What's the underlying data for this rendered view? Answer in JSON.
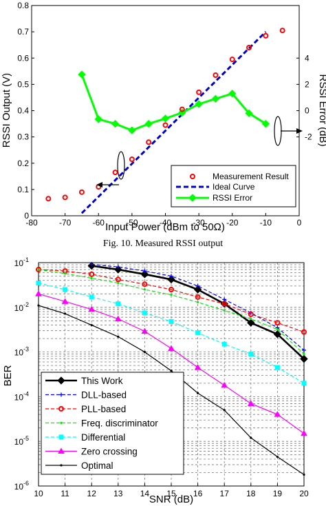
{
  "caption": "Fig. 10.  Measured RSSI output",
  "chart_data": [
    {
      "type": "line",
      "xlabel": "Input Power (dBm to 50Ω)",
      "ylabel": "RSSI Output (V)",
      "y2label": "RSSI Error (dB)",
      "xlim": [
        -80,
        0
      ],
      "ylim": [
        0,
        0.8
      ],
      "y2lim": [
        -8,
        8
      ],
      "xticks": [
        "-80",
        "-70",
        "-60",
        "-50",
        "-40",
        "-30",
        "-20",
        "-10",
        "0"
      ],
      "yticks": [
        "0",
        "0.1",
        "0.2",
        "0.3",
        "0.4",
        "0.5",
        "0.6",
        "0.7",
        "0.8"
      ],
      "y2ticks": [
        "-2",
        "0",
        "2",
        "4"
      ],
      "grid": false,
      "legend_position": "bottom-right",
      "series": [
        {
          "name": "Measurement Result",
          "color": "#ff0000",
          "marker": "circle",
          "x": [
            -75,
            -70,
            -65,
            -60,
            -55,
            -50,
            -45,
            -40,
            -35,
            -30,
            -25,
            -20,
            -15,
            -10,
            -5
          ],
          "y": [
            0.065,
            0.07,
            0.09,
            0.11,
            0.165,
            0.215,
            0.28,
            0.345,
            0.405,
            0.47,
            0.535,
            0.595,
            0.64,
            0.685,
            0.705
          ]
        },
        {
          "name": "Ideal Curve",
          "color": "#0000cc",
          "dash": true,
          "x": [
            -65,
            -10
          ],
          "y": [
            0.01,
            0.7
          ]
        },
        {
          "name": "RSSI Error",
          "color": "#00ff00",
          "marker": "diamond",
          "axis": "right",
          "x": [
            -65,
            -60,
            -55,
            -50,
            -45,
            -40,
            -35,
            -30,
            -25,
            -20,
            -15,
            -10
          ],
          "y": [
            2.75,
            -0.65,
            -1.0,
            -1.5,
            -1.0,
            -0.6,
            -0.15,
            0.5,
            0.9,
            1.3,
            -0.2,
            -1.0
          ]
        }
      ]
    },
    {
      "type": "line",
      "xlabel": "SNR (dB)",
      "ylabel": "BER",
      "xlim": [
        10,
        20
      ],
      "ylim": [
        1e-06,
        0.1
      ],
      "log_y": true,
      "xticks": [
        "10",
        "11",
        "12",
        "13",
        "14",
        "15",
        "16",
        "17",
        "18",
        "19",
        "20"
      ],
      "yticks": [
        {
          "base": "10",
          "exp": "-6"
        },
        {
          "base": "10",
          "exp": "-5"
        },
        {
          "base": "10",
          "exp": "-4"
        },
        {
          "base": "10",
          "exp": "-3"
        },
        {
          "base": "10",
          "exp": "-2"
        },
        {
          "base": "10",
          "exp": "-1"
        }
      ],
      "grid": true,
      "legend_position": "bottom-left",
      "x": [
        10,
        11,
        12,
        13,
        14,
        15,
        16,
        17,
        18,
        19,
        20
      ],
      "series": [
        {
          "name": "This Work",
          "color": "#000000",
          "marker": "diamond",
          "values": [
            null,
            null,
            0.085,
            0.07,
            0.055,
            0.042,
            0.025,
            0.012,
            0.0045,
            0.0025,
            0.0007
          ]
        },
        {
          "name": "DLL-based",
          "color": "#0000ff",
          "marker": "plus",
          "values": [
            null,
            null,
            0.092,
            0.08,
            0.065,
            0.05,
            0.03,
            0.015,
            0.0075,
            0.0035,
            0.0011
          ]
        },
        {
          "name": "PLL-based",
          "color": "#ff0000",
          "marker": "circle",
          "values": [
            0.07,
            0.065,
            0.055,
            0.042,
            0.033,
            0.025,
            0.017,
            0.012,
            0.007,
            0.0045,
            0.0028
          ]
        },
        {
          "name": "Freq. discriminator",
          "color": "#00ee00",
          "marker": "point",
          "values": [
            0.07,
            0.057,
            0.045,
            0.035,
            0.025,
            0.019,
            0.013,
            0.0085,
            0.0055,
            0.0032,
            0.0009
          ]
        },
        {
          "name": "Differential",
          "color": "#00ffff",
          "marker": "square",
          "values": [
            0.035,
            0.025,
            0.017,
            0.012,
            0.0075,
            0.0048,
            0.0027,
            0.0015,
            0.0009,
            0.00045,
            0.0002
          ]
        },
        {
          "name": "Zero crossing",
          "color": "#ff00ff",
          "marker": "triangle",
          "values": [
            0.02,
            0.0135,
            0.009,
            0.0055,
            0.0029,
            0.0012,
            0.00045,
            0.00018,
            7e-05,
            4e-05,
            1.5e-05
          ]
        },
        {
          "name": "Optimal",
          "color": "#000000",
          "marker": "point",
          "values": [
            0.011,
            0.0072,
            0.004,
            0.0022,
            0.001,
            0.00038,
            0.00012,
            5e-05,
            1.2e-05,
            4.5e-06,
            1.8e-06
          ]
        }
      ]
    }
  ]
}
